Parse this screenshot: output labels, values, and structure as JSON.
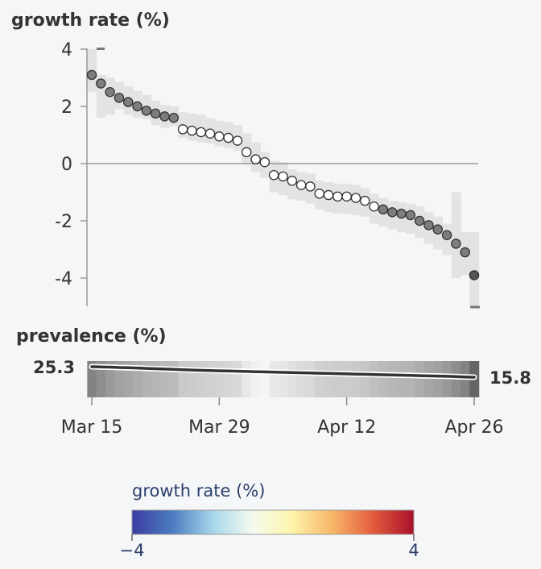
{
  "chart_data": [
    {
      "type": "scatter",
      "ylabel": "growth rate (%)",
      "ylim": [
        -5,
        4
      ],
      "yticks": [
        4,
        2,
        0,
        -2,
        -4
      ],
      "x_dates": [
        "Mar 15",
        "Mar 16",
        "Mar 17",
        "Mar 18",
        "Mar 19",
        "Mar 20",
        "Mar 21",
        "Mar 22",
        "Mar 23",
        "Mar 24",
        "Mar 25",
        "Mar 26",
        "Mar 27",
        "Mar 28",
        "Mar 29",
        "Mar 30",
        "Mar 31",
        "Apr 1",
        "Apr 2",
        "Apr 3",
        "Apr 4",
        "Apr 5",
        "Apr 6",
        "Apr 7",
        "Apr 8",
        "Apr 9",
        "Apr 10",
        "Apr 11",
        "Apr 12",
        "Apr 13",
        "Apr 14",
        "Apr 15",
        "Apr 16",
        "Apr 17",
        "Apr 18",
        "Apr 19",
        "Apr 20",
        "Apr 21",
        "Apr 22",
        "Apr 23",
        "Apr 24",
        "Apr 25",
        "Apr 26"
      ],
      "values": [
        3.1,
        2.8,
        2.5,
        2.3,
        2.15,
        2.0,
        1.85,
        1.75,
        1.65,
        1.6,
        1.2,
        1.15,
        1.1,
        1.05,
        0.95,
        0.9,
        0.8,
        0.4,
        0.15,
        0.05,
        -0.4,
        -0.45,
        -0.6,
        -0.75,
        -0.8,
        -1.05,
        -1.1,
        -1.15,
        -1.15,
        -1.2,
        -1.3,
        -1.5,
        -1.6,
        -1.7,
        -1.75,
        -1.8,
        -2.0,
        -2.15,
        -2.3,
        -2.5,
        -2.8,
        -3.1,
        -3.9
      ],
      "ci_low": [
        2.5,
        1.6,
        1.7,
        1.9,
        1.7,
        1.6,
        1.55,
        1.35,
        1.25,
        1.3,
        0.9,
        0.8,
        0.75,
        0.7,
        0.6,
        0.55,
        0.45,
        0.0,
        -0.3,
        -0.5,
        -1.0,
        -1.1,
        -1.25,
        -1.3,
        -1.4,
        -1.6,
        -1.7,
        -1.75,
        -1.75,
        -1.8,
        -1.85,
        -2.1,
        -2.2,
        -2.3,
        -2.4,
        -2.45,
        -2.6,
        -2.8,
        -3.0,
        -3.2,
        -4.0,
        -3.9,
        -5.0
      ],
      "ci_high": [
        4.0,
        3.1,
        3.0,
        2.85,
        2.7,
        2.55,
        2.4,
        2.2,
        2.05,
        2.0,
        1.8,
        1.75,
        1.7,
        1.6,
        1.5,
        1.45,
        1.35,
        1.05,
        0.75,
        0.4,
        0.1,
        0.05,
        -0.2,
        -0.3,
        -0.35,
        -0.6,
        -0.65,
        -0.7,
        -0.7,
        -0.75,
        -0.85,
        -1.05,
        -1.2,
        -1.3,
        -1.35,
        -1.4,
        -1.5,
        -1.7,
        -1.85,
        -2.1,
        -1.0,
        -2.4,
        -2.4
      ],
      "grid": false,
      "baseline_y": 0
    },
    {
      "type": "line",
      "ylabel": "prevalence (%)",
      "x_dates_ref": "same as growth rate panel",
      "values": [
        25.3,
        25.1,
        24.9,
        24.6,
        24.4,
        24.1,
        23.8,
        23.5,
        23.2,
        22.9,
        22.6,
        22.3,
        22.0,
        21.8,
        21.6,
        21.4,
        21.2,
        21.0,
        20.8,
        20.6,
        20.4,
        20.2,
        20.0,
        19.8,
        19.6,
        19.4,
        19.2,
        19.0,
        18.8,
        18.6,
        18.4,
        18.2,
        18.0,
        17.8,
        17.6,
        17.4,
        17.2,
        17.0,
        16.8,
        16.6,
        16.3,
        16.0,
        15.8
      ],
      "start_label": "25.3",
      "end_label": "15.8",
      "x_ticks": [
        "Mar 15",
        "Mar 29",
        "Apr 12",
        "Apr 26"
      ]
    }
  ],
  "legend": {
    "title": "growth rate (%)",
    "min_label": "−4",
    "max_label": "4",
    "colors": [
      "#3b3ca0",
      "#4b7cc0",
      "#a6d6ea",
      "#f4fbef",
      "#fdf3a8",
      "#f7b566",
      "#e45a3c",
      "#a8102a"
    ]
  },
  "colors": {
    "filled_point": "#7d7d7d",
    "open_point": "#ffffff",
    "ci_band": "#e3e3e3",
    "axis": "#999999",
    "line": "#333333"
  }
}
